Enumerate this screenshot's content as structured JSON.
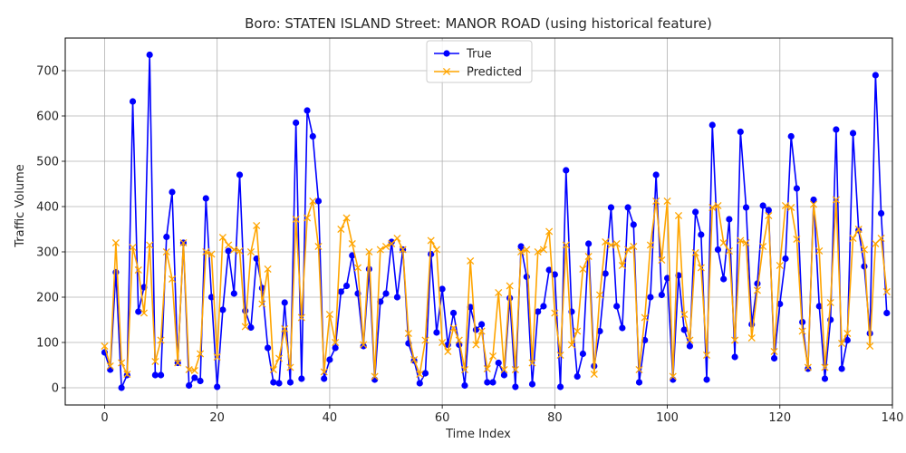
{
  "chart_data": {
    "type": "line",
    "title": "Boro: STATEN ISLAND Street: MANOR ROAD (using historical feature)",
    "xlabel": "Time Index",
    "ylabel": "Traffic Volume",
    "xlim": [
      -7,
      140
    ],
    "ylim": [
      -38,
      772
    ],
    "x_ticks": [
      0,
      20,
      40,
      60,
      80,
      100,
      120,
      140
    ],
    "y_ticks": [
      0,
      100,
      200,
      300,
      400,
      500,
      600,
      700
    ],
    "grid": true,
    "legend_position": "top-center",
    "series": [
      {
        "name": "True",
        "color": "#0000ff",
        "marker": "circle",
        "values": [
          78,
          40,
          255,
          0,
          28,
          632,
          168,
          222,
          735,
          28,
          28,
          333,
          432,
          55,
          320,
          5,
          22,
          15,
          418,
          200,
          2,
          172,
          302,
          208,
          470,
          170,
          133,
          285,
          220,
          88,
          12,
          10,
          188,
          12,
          585,
          20,
          612,
          555,
          412,
          20,
          62,
          88,
          212,
          225,
          292,
          208,
          92,
          262,
          18,
          190,
          208,
          322,
          200,
          305,
          98,
          60,
          10,
          32,
          295,
          122,
          218,
          95,
          165,
          95,
          5,
          178,
          128,
          140,
          12,
          12,
          55,
          28,
          198,
          2,
          312,
          245,
          8,
          168,
          180,
          260,
          250,
          2,
          480,
          168,
          25,
          75,
          318,
          48,
          125,
          252,
          398,
          180,
          132,
          398,
          360,
          12,
          105,
          200,
          470,
          205,
          242,
          18,
          248,
          128,
          92,
          388,
          338,
          18,
          580,
          305,
          240,
          372,
          68,
          565,
          398,
          140,
          230,
          402,
          392,
          65,
          185,
          285,
          555,
          440,
          145,
          42,
          415,
          180,
          20,
          150,
          570,
          42,
          105,
          562,
          348,
          268,
          120,
          690,
          385,
          165
        ]
      },
      {
        "name": "Predicted",
        "color": "#ffa500",
        "marker": "x",
        "values": [
          92,
          48,
          320,
          55,
          30,
          310,
          260,
          165,
          315,
          58,
          105,
          300,
          240,
          55,
          320,
          40,
          38,
          75,
          300,
          295,
          68,
          332,
          315,
          305,
          302,
          135,
          300,
          358,
          185,
          262,
          40,
          65,
          130,
          45,
          372,
          155,
          375,
          412,
          312,
          35,
          162,
          100,
          350,
          375,
          318,
          265,
          95,
          300,
          25,
          305,
          312,
          318,
          330,
          305,
          120,
          62,
          30,
          105,
          325,
          305,
          100,
          80,
          132,
          105,
          40,
          280,
          95,
          125,
          42,
          70,
          210,
          40,
          225,
          40,
          300,
          305,
          55,
          300,
          305,
          345,
          165,
          72,
          315,
          95,
          125,
          262,
          290,
          30,
          205,
          322,
          315,
          318,
          270,
          305,
          312,
          40,
          155,
          315,
          412,
          282,
          412,
          25,
          380,
          162,
          105,
          298,
          265,
          72,
          398,
          402,
          320,
          302,
          105,
          325,
          320,
          110,
          215,
          312,
          380,
          80,
          270,
          402,
          398,
          328,
          125,
          45,
          405,
          302,
          45,
          188,
          415,
          98,
          120,
          330,
          350,
          305,
          92,
          318,
          330,
          212
        ]
      }
    ]
  }
}
